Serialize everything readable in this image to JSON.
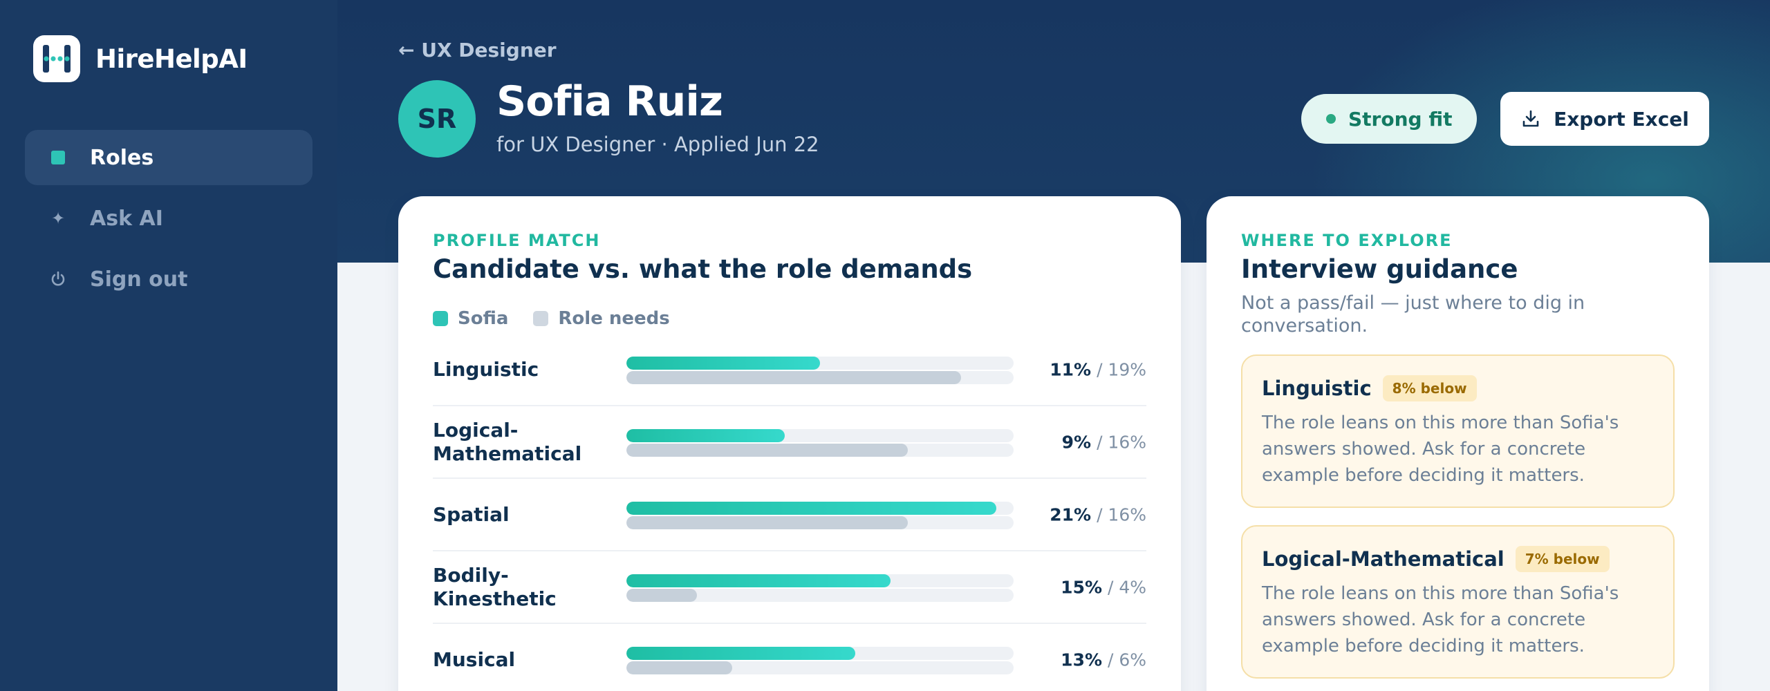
{
  "brand": {
    "name": "HireHelpAI"
  },
  "nav": [
    {
      "label": "Roles",
      "icon": "square-icon",
      "active": true
    },
    {
      "label": "Ask AI",
      "icon": "sparkle-icon",
      "active": false
    },
    {
      "label": "Sign out",
      "icon": "power-icon",
      "active": false
    }
  ],
  "header": {
    "back_label": "← UX Designer",
    "avatar_initials": "SR",
    "name": "Sofia Ruiz",
    "subtitle": "for UX Designer · Applied Jun 22",
    "fit_label": "Strong fit",
    "export_label": "Export Excel"
  },
  "profile": {
    "eyebrow": "PROFILE MATCH",
    "title": "Candidate vs. what the role demands",
    "legend": {
      "candidate": "Sofia",
      "role": "Role needs"
    },
    "rows": [
      {
        "label": "Linguistic",
        "candidate": 11,
        "role": 19,
        "candidate_text": "11%",
        "role_text": "/ 19%"
      },
      {
        "label": "Logical-Mathematical",
        "candidate": 9,
        "role": 16,
        "candidate_text": "9%",
        "role_text": "/ 16%"
      },
      {
        "label": "Spatial",
        "candidate": 21,
        "role": 16,
        "candidate_text": "21%",
        "role_text": "/ 16%"
      },
      {
        "label": "Bodily-Kinesthetic",
        "candidate": 15,
        "role": 4,
        "candidate_text": "15%",
        "role_text": "/ 4%"
      },
      {
        "label": "Musical",
        "candidate": 13,
        "role": 6,
        "candidate_text": "13%",
        "role_text": "/ 6%"
      }
    ]
  },
  "guidance": {
    "eyebrow": "WHERE TO EXPLORE",
    "title": "Interview guidance",
    "subtitle": "Not a pass/fail — just where to dig in conversation.",
    "cards": [
      {
        "title": "Linguistic",
        "tag": "8% below",
        "body": "The role leans on this more than Sofia's answers showed. Ask for a concrete example before deciding it matters."
      },
      {
        "title": "Logical-Mathematical",
        "tag": "7% below",
        "body": "The role leans on this more than Sofia's answers showed. Ask for a concrete example before deciding it matters."
      }
    ]
  },
  "colors": {
    "accent": "#2ec4b6",
    "sidebar": "#1a3a63",
    "warn_bg": "#fff8ea"
  }
}
